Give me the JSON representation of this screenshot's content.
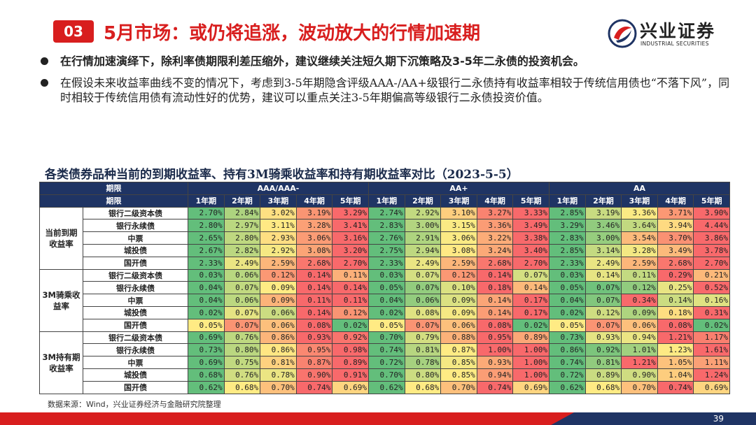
{
  "header": {
    "section_number": "03",
    "title": "5月市场：或仍将追涨，波动放大的行情加速期"
  },
  "logo": {
    "name": "兴业证券",
    "english": "INDUSTRIAL SECURITIES",
    "color": "#d81e1e",
    "accent": "#1f3464"
  },
  "bullets": [
    "在行情加速演绎下，除利率债期限利差压缩外，建议继续关注短久期下沉策略及3-5年二永债的投资机会。",
    "在假设未来收益率曲线不变的情况下，考虑到3-5年期隐含评级AAA-/AA+级银行二永债持有收益率相较于传统信用债也“不落下风”，同时相较于传统信用债有流动性好的优势，建议可以重点关注3-5年期偏高等级银行二永债投资价值。"
  ],
  "table": {
    "title": "各类债券品种当前的到期收益率、持有3M骑乘收益率和持有期收益率对比（2023-5-5）",
    "header_row1_label": "期限",
    "header_row2_label": "期限",
    "ratings": [
      "AAA/AAA-",
      "AA+",
      "AA"
    ],
    "terms": [
      "1年期",
      "2年期",
      "3年期",
      "4年期",
      "5年期"
    ],
    "groups": [
      {
        "name": "当前到期收益率",
        "rows": [
          {
            "name": "银行二级资本债",
            "values": [
              "2.70%",
              "2.84%",
              "3.02%",
              "3.19%",
              "3.29%",
              "2.74%",
              "2.92%",
              "3.10%",
              "3.27%",
              "3.33%",
              "2.85%",
              "3.19%",
              "3.36%",
              "3.71%",
              "3.90%"
            ]
          },
          {
            "name": "银行永续债",
            "values": [
              "2.80%",
              "2.97%",
              "3.11%",
              "3.28%",
              "3.41%",
              "2.83%",
              "3.00%",
              "3.15%",
              "3.36%",
              "3.49%",
              "3.29%",
              "3.46%",
              "3.64%",
              "3.94%",
              "4.44%"
            ]
          },
          {
            "name": "中票",
            "values": [
              "2.65%",
              "2.80%",
              "2.93%",
              "3.06%",
              "3.16%",
              "2.76%",
              "2.91%",
              "3.06%",
              "3.22%",
              "3.38%",
              "2.83%",
              "3.00%",
              "3.54%",
              "3.70%",
              "3.86%"
            ]
          },
          {
            "name": "城投债",
            "values": [
              "2.67%",
              "2.82%",
              "2.92%",
              "3.08%",
              "3.20%",
              "2.75%",
              "2.94%",
              "3.08%",
              "3.24%",
              "3.40%",
              "2.85%",
              "3.14%",
              "3.28%",
              "3.49%",
              "3.78%"
            ]
          },
          {
            "name": "国开债",
            "values": [
              "2.33%",
              "2.49%",
              "2.59%",
              "2.68%",
              "2.70%",
              "2.33%",
              "2.49%",
              "2.59%",
              "2.68%",
              "2.70%",
              "2.33%",
              "2.49%",
              "2.59%",
              "2.68%",
              "2.70%"
            ]
          }
        ]
      },
      {
        "name": "3M骑乘收益率",
        "rows": [
          {
            "name": "银行二级资本债",
            "values": [
              "0.03%",
              "0.06%",
              "0.12%",
              "0.14%",
              "0.11%",
              "0.03%",
              "0.07%",
              "0.12%",
              "0.14%",
              "0.07%",
              "0.03%",
              "0.14%",
              "0.11%",
              "0.29%",
              "0.21%"
            ]
          },
          {
            "name": "银行永续债",
            "values": [
              "0.04%",
              "0.07%",
              "0.09%",
              "0.14%",
              "0.14%",
              "0.05%",
              "0.07%",
              "0.10%",
              "0.18%",
              "0.14%",
              "0.05%",
              "0.07%",
              "0.12%",
              "0.25%",
              "0.52%"
            ]
          },
          {
            "name": "中票",
            "values": [
              "0.04%",
              "0.06%",
              "0.09%",
              "0.11%",
              "0.11%",
              "0.04%",
              "0.06%",
              "0.09%",
              "0.14%",
              "0.17%",
              "0.04%",
              "0.07%",
              "0.34%",
              "0.14%",
              "0.16%"
            ]
          },
          {
            "name": "城投债",
            "values": [
              "0.02%",
              "0.07%",
              "0.06%",
              "0.14%",
              "0.12%",
              "0.02%",
              "0.08%",
              "0.09%",
              "0.14%",
              "0.17%",
              "0.02%",
              "0.12%",
              "0.09%",
              "0.18%",
              "0.31%"
            ]
          },
          {
            "name": "国开债",
            "values": [
              "0.05%",
              "0.07%",
              "0.06%",
              "0.08%",
              "0.02%",
              "0.05%",
              "0.07%",
              "0.06%",
              "0.08%",
              "0.02%",
              "0.05%",
              "0.07%",
              "0.06%",
              "0.08%",
              "0.02%"
            ]
          }
        ]
      },
      {
        "name": "3M持有期收益率",
        "rows": [
          {
            "name": "银行二级资本债",
            "values": [
              "0.69%",
              "0.76%",
              "0.86%",
              "0.93%",
              "0.92%",
              "0.70%",
              "0.79%",
              "0.88%",
              "0.95%",
              "0.89%",
              "0.73%",
              "0.93%",
              "0.94%",
              "1.21%",
              "1.17%"
            ]
          },
          {
            "name": "银行永续债",
            "values": [
              "0.73%",
              "0.80%",
              "0.86%",
              "0.95%",
              "0.98%",
              "0.74%",
              "0.81%",
              "0.87%",
              "1.00%",
              "1.00%",
              "0.86%",
              "0.92%",
              "1.01%",
              "1.23%",
              "1.61%"
            ]
          },
          {
            "name": "中票",
            "values": [
              "0.69%",
              "0.75%",
              "0.81%",
              "0.87%",
              "0.89%",
              "0.72%",
              "0.78%",
              "0.85%",
              "0.93%",
              "1.00%",
              "0.74%",
              "0.81%",
              "1.21%",
              "1.05%",
              "1.11%"
            ]
          },
          {
            "name": "城投债",
            "values": [
              "0.68%",
              "0.76%",
              "0.78%",
              "0.90%",
              "0.91%",
              "0.70%",
              "0.80%",
              "0.85%",
              "0.94%",
              "1.00%",
              "0.72%",
              "0.89%",
              "0.90%",
              "1.04%",
              "1.24%"
            ]
          },
          {
            "name": "国开债",
            "values": [
              "0.62%",
              "0.68%",
              "0.70%",
              "0.74%",
              "0.69%",
              "0.62%",
              "0.68%",
              "0.70%",
              "0.74%",
              "0.69%",
              "0.62%",
              "0.68%",
              "0.70%",
              "0.74%",
              "0.69%"
            ]
          }
        ]
      }
    ],
    "heatmap_colors": {
      "low": "#63be7b",
      "mid": "#ffeb84",
      "high": "#f8696b"
    }
  },
  "source": "数据来源：Wind，兴业证券经济与金融研究院整理",
  "page_number": "39"
}
